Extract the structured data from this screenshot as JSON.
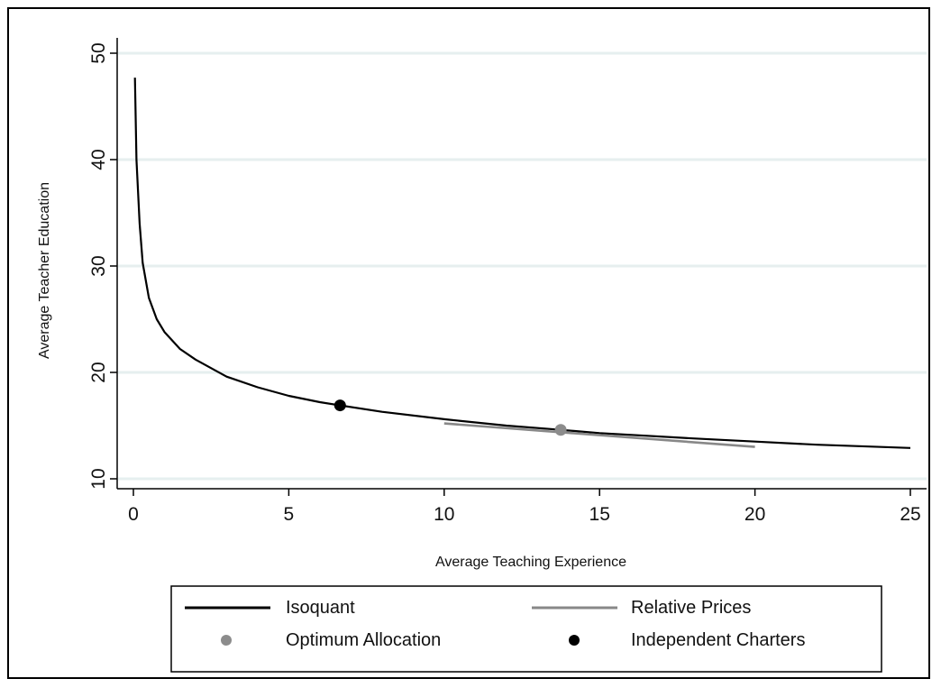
{
  "chart_data": {
    "type": "line",
    "title": "",
    "xlabel": "Average Teaching Experience",
    "ylabel": "Average Teacher Education",
    "xlim": [
      0,
      25
    ],
    "ylim": [
      10,
      50
    ],
    "x_ticks": [
      0,
      5,
      10,
      15,
      20,
      25
    ],
    "y_ticks": [
      10,
      20,
      30,
      40,
      50
    ],
    "grid": "horizontal",
    "legend_position": "bottom",
    "series": [
      {
        "name": "Isoquant",
        "kind": "line",
        "color": "#000000",
        "x": [
          0.05,
          0.1,
          0.2,
          0.3,
          0.5,
          0.75,
          1,
          1.5,
          2,
          3,
          4,
          5,
          6,
          6.65,
          8,
          10,
          12,
          13.75,
          15,
          18,
          20,
          22,
          25
        ],
        "y": [
          47.7,
          40.0,
          34.0,
          30.3,
          27.0,
          25.0,
          23.8,
          22.2,
          21.2,
          19.6,
          18.6,
          17.8,
          17.2,
          16.9,
          16.3,
          15.6,
          15.0,
          14.6,
          14.3,
          13.8,
          13.5,
          13.2,
          12.9
        ]
      },
      {
        "name": "Relative Prices",
        "kind": "line",
        "color": "#888888",
        "x": [
          10,
          20
        ],
        "y": [
          15.2,
          13.0
        ]
      },
      {
        "name": "Optimum Allocation",
        "kind": "point",
        "color": "#8c8c8c",
        "x": [
          13.75
        ],
        "y": [
          14.6
        ]
      },
      {
        "name": "Independent Charters",
        "kind": "point",
        "color": "#000000",
        "x": [
          6.65
        ],
        "y": [
          16.9
        ]
      }
    ]
  },
  "colors": {
    "plot_background": "#ffffff",
    "grid": "#e6efef",
    "isoquant": "#000000",
    "relative_prices": "#888888",
    "optimum_point": "#8c8c8c",
    "charter_point": "#000000"
  }
}
